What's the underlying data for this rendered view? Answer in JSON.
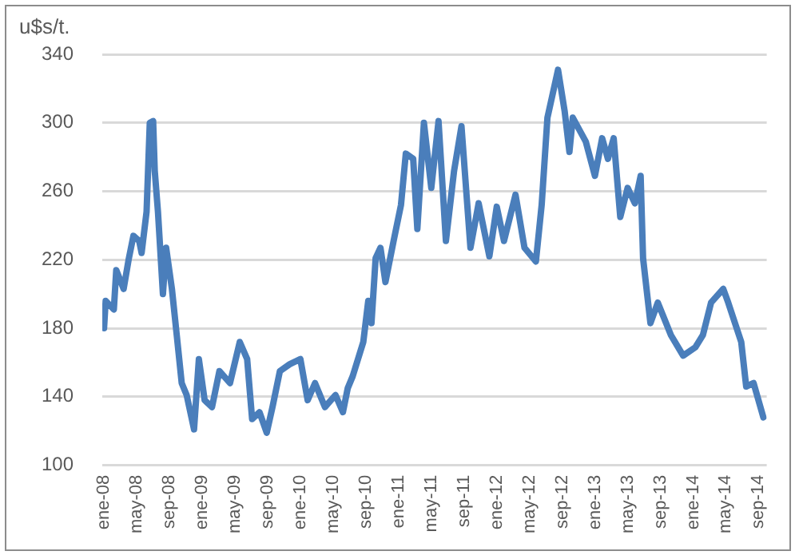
{
  "chart_data": {
    "type": "line",
    "ylabel": "u$s/t.",
    "x": [
      "2008-01-01",
      "2008-01-07",
      "2008-02-07",
      "2008-02-16",
      "2008-03-13",
      "2008-04-01",
      "2008-04-19",
      "2008-05-10",
      "2008-05-19",
      "2008-06-07",
      "2008-06-19",
      "2008-07-01",
      "2008-07-07",
      "2008-07-19",
      "2008-08-07",
      "2008-08-19",
      "2008-09-10",
      "2008-09-28",
      "2008-10-16",
      "2008-11-04",
      "2008-12-01",
      "2008-12-19",
      "2009-01-10",
      "2009-02-07",
      "2009-03-04",
      "2009-04-13",
      "2009-05-19",
      "2009-06-16",
      "2009-07-04",
      "2009-08-01",
      "2009-08-28",
      "2009-09-19",
      "2009-10-16",
      "2009-11-22",
      "2010-01-01",
      "2010-01-28",
      "2010-02-25",
      "2010-04-01",
      "2010-05-10",
      "2010-06-07",
      "2010-06-25",
      "2010-07-13",
      "2010-08-22",
      "2010-09-10",
      "2010-09-22",
      "2010-10-07",
      "2010-10-25",
      "2010-11-13",
      "2010-12-13",
      "2011-01-10",
      "2011-01-28",
      "2011-02-25",
      "2011-03-10",
      "2011-04-04",
      "2011-05-01",
      "2011-05-28",
      "2011-06-25",
      "2011-07-25",
      "2011-08-22",
      "2011-09-25",
      "2011-10-25",
      "2011-12-04",
      "2012-01-01",
      "2012-01-28",
      "2012-03-10",
      "2012-04-13",
      "2012-05-25",
      "2012-06-16",
      "2012-07-07",
      "2012-08-16",
      "2012-09-10",
      "2012-09-28",
      "2012-10-10",
      "2012-11-28",
      "2013-01-01",
      "2013-01-28",
      "2013-02-19",
      "2013-03-10",
      "2013-04-04",
      "2013-05-01",
      "2013-05-28",
      "2013-06-19",
      "2013-06-28",
      "2013-07-25",
      "2013-08-22",
      "2013-10-10",
      "2013-11-25",
      "2014-01-10",
      "2014-02-07",
      "2014-03-07",
      "2014-04-22",
      "2014-05-10",
      "2014-06-28",
      "2014-07-16",
      "2014-08-13",
      "2014-09-19"
    ],
    "series": [
      {
        "color": "#4a7ebb",
        "values": [
          180,
          196,
          191,
          214,
          203,
          220,
          234,
          231,
          224,
          248,
          300,
          301,
          272,
          248,
          200,
          227,
          203,
          176,
          148,
          141,
          121,
          162,
          138,
          134,
          155,
          148,
          172,
          162,
          127,
          131,
          119,
          134,
          155,
          159,
          162,
          138,
          148,
          134,
          141,
          131,
          145,
          152,
          172,
          196,
          183,
          221,
          227,
          207,
          231,
          252,
          282,
          279,
          238,
          300,
          262,
          301,
          231,
          272,
          298,
          227,
          253,
          222,
          251,
          231,
          258,
          227,
          219,
          252,
          303,
          331,
          307,
          283,
          303,
          289,
          269,
          291,
          279,
          291,
          245,
          262,
          253,
          269,
          221,
          183,
          195,
          176,
          164,
          169,
          176,
          195,
          203,
          195,
          172,
          146,
          148,
          128
        ]
      }
    ],
    "xlim": [
      "2007-12-25",
      "2014-10-01"
    ],
    "xticks": [
      {
        "value": "2008-01-01",
        "label": "ene-08"
      },
      {
        "value": "2008-05-01",
        "label": "may-08"
      },
      {
        "value": "2008-09-01",
        "label": "sep-08"
      },
      {
        "value": "2009-01-01",
        "label": "ene-09"
      },
      {
        "value": "2009-05-01",
        "label": "may-09"
      },
      {
        "value": "2009-09-01",
        "label": "sep-09"
      },
      {
        "value": "2010-01-01",
        "label": "ene-10"
      },
      {
        "value": "2010-05-01",
        "label": "may-10"
      },
      {
        "value": "2010-09-01",
        "label": "sep-10"
      },
      {
        "value": "2011-01-01",
        "label": "ene-11"
      },
      {
        "value": "2011-05-01",
        "label": "may-11"
      },
      {
        "value": "2011-09-01",
        "label": "sep-11"
      },
      {
        "value": "2012-01-01",
        "label": "ene-12"
      },
      {
        "value": "2012-05-01",
        "label": "may-12"
      },
      {
        "value": "2012-09-01",
        "label": "sep-12"
      },
      {
        "value": "2013-01-01",
        "label": "ene-13"
      },
      {
        "value": "2013-05-01",
        "label": "may-13"
      },
      {
        "value": "2013-09-01",
        "label": "sep-13"
      },
      {
        "value": "2014-01-01",
        "label": "ene-14"
      },
      {
        "value": "2014-05-01",
        "label": "may-14"
      },
      {
        "value": "2014-09-01",
        "label": "sep-14"
      }
    ],
    "ylim": [
      100,
      340
    ],
    "yticks": [
      100,
      140,
      180,
      220,
      260,
      300,
      340
    ],
    "grid": "y",
    "legend": false,
    "marker": "none",
    "line_style": "solid"
  }
}
